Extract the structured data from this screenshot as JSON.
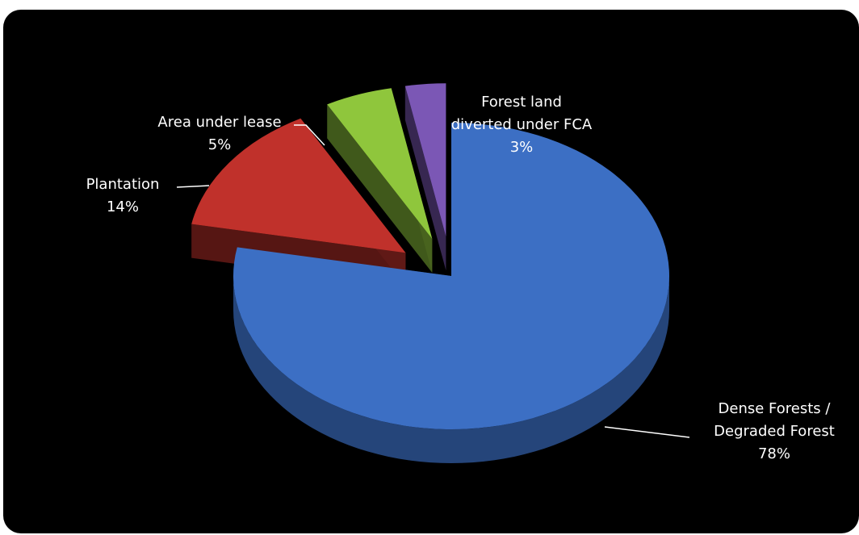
{
  "chart_data": {
    "type": "pie",
    "style": "3d-exploded",
    "background": "#000000",
    "categories": [
      "Dense Forests / Degraded Forest",
      "Plantation",
      "Area under lease",
      "Forest land diverted under FCA"
    ],
    "values": [
      78,
      14,
      5,
      3
    ],
    "colors": [
      "#3c6fc4",
      "#c0312b",
      "#8fc63c",
      "#7b57b5"
    ],
    "labels": [
      {
        "lines": [
          "Dense Forests /",
          "Degraded Forest"
        ],
        "percent": "78%"
      },
      {
        "lines": [
          "Plantation"
        ],
        "percent": "14%"
      },
      {
        "lines": [
          "Area under lease"
        ],
        "percent": "5%"
      },
      {
        "lines": [
          "Forest land",
          "diverted under FCA"
        ],
        "percent": "3%"
      }
    ]
  }
}
